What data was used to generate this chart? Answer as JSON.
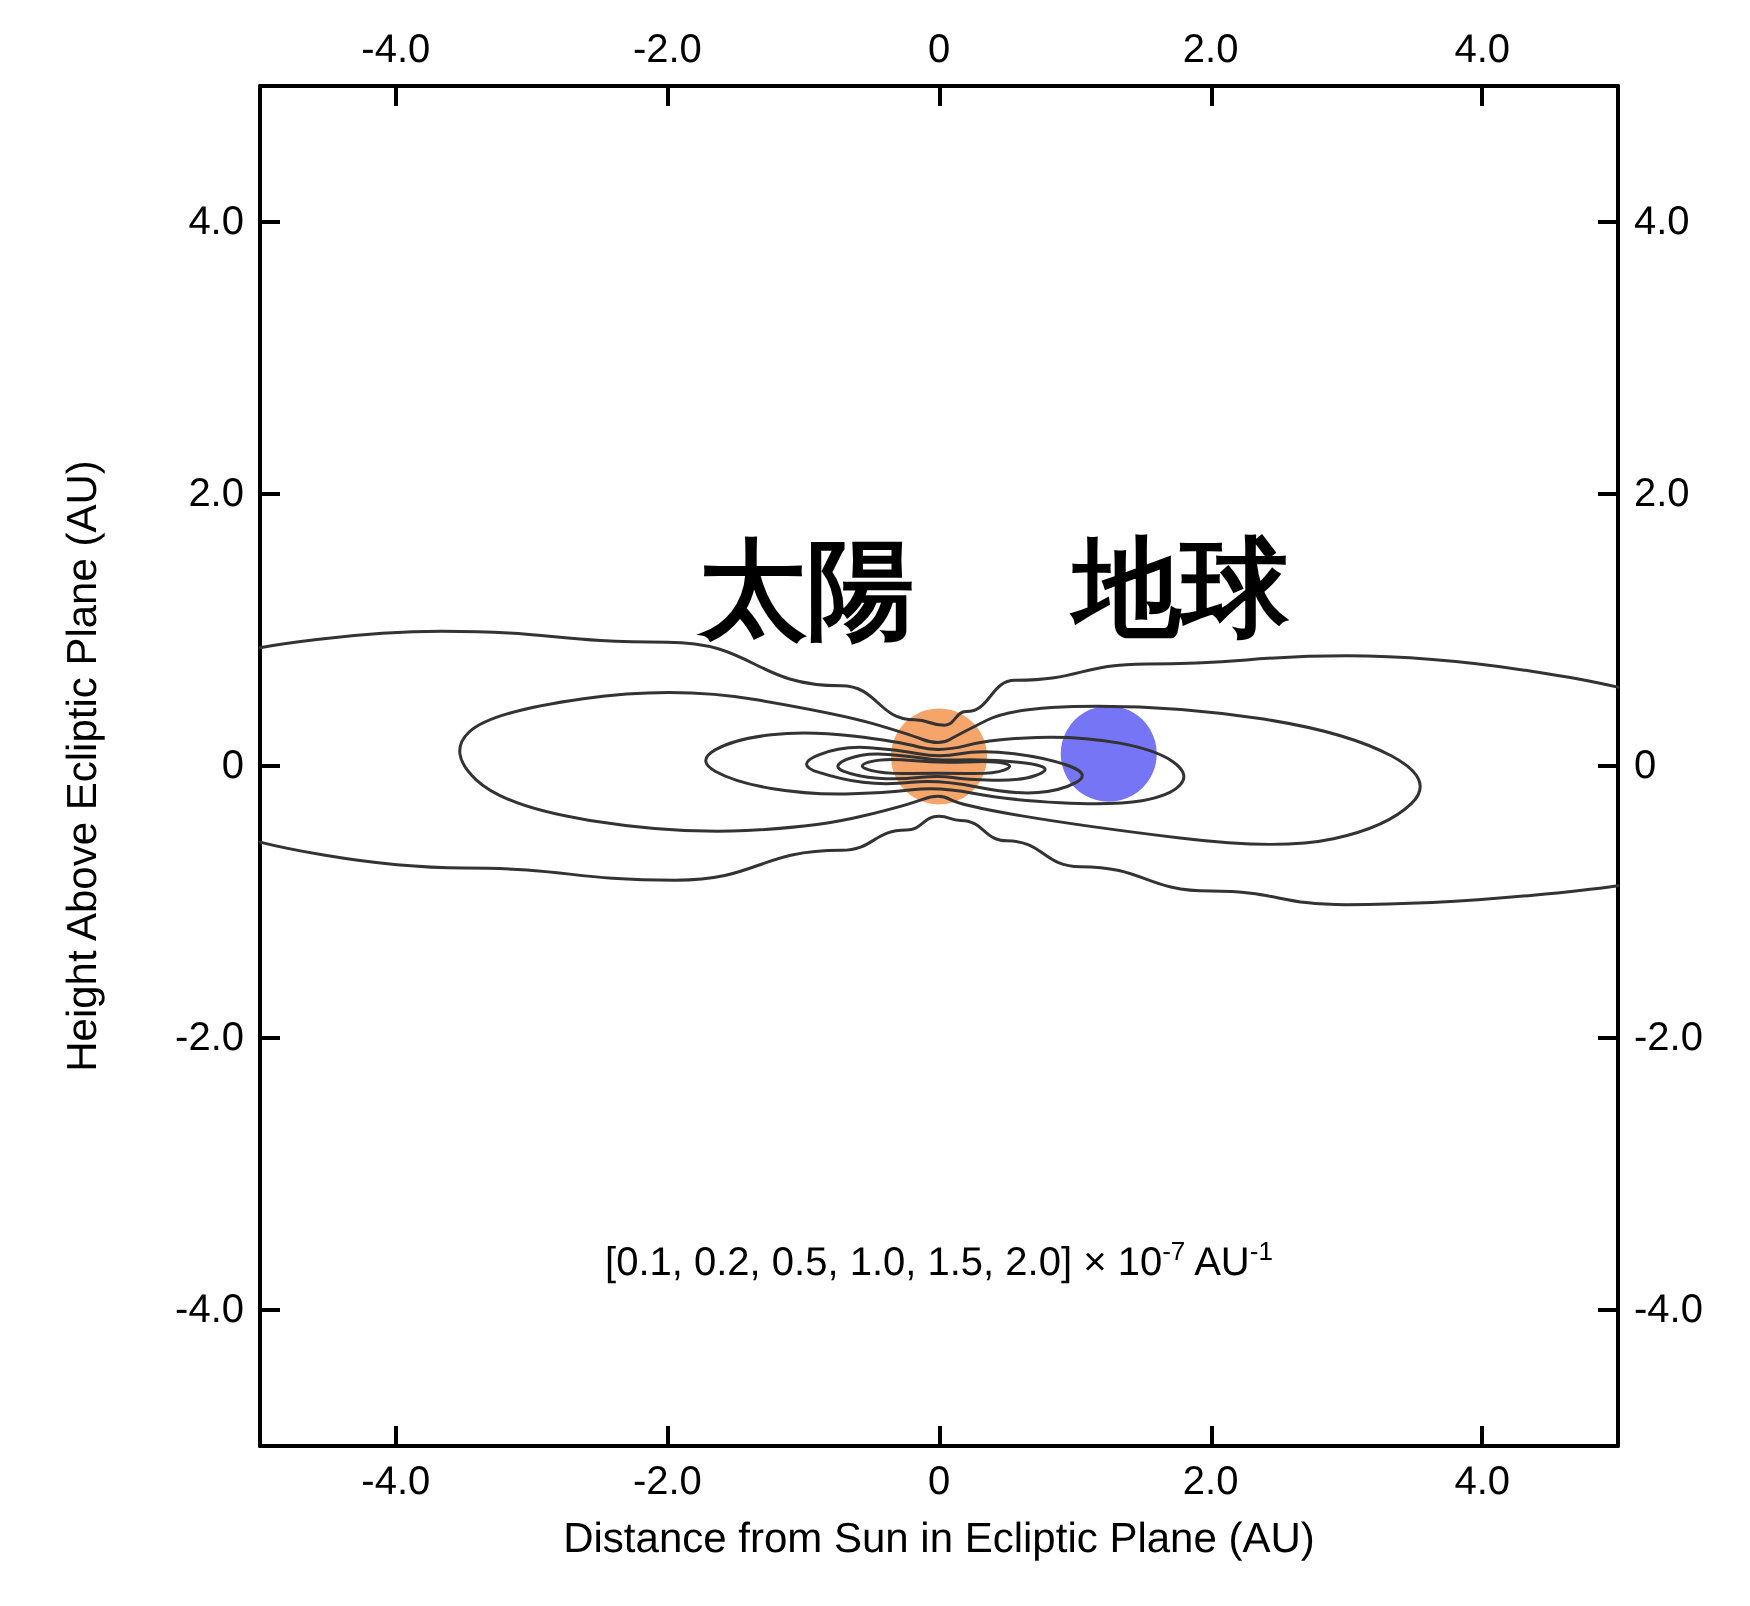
{
  "chart_data": {
    "type": "line",
    "xlabel": "Distance from Sun in Ecliptic Plane (AU)",
    "ylabel": "Height Above Ecliptic Plane (AU)",
    "xlim": [
      -5,
      5
    ],
    "xticks": [
      {
        "value": -4,
        "label": "-4.0"
      },
      {
        "value": -2,
        "label": "-2.0"
      },
      0,
      {
        "value": 2,
        "label": "2.0"
      },
      {
        "value": 4,
        "label": "4.0"
      }
    ],
    "x2lim": [
      -5,
      5
    ],
    "x2ticks": [
      {
        "value": -4,
        "label": "-4.0"
      },
      {
        "value": -2,
        "label": "-2.0"
      },
      0,
      {
        "value": 2,
        "label": "2.0"
      },
      {
        "value": 4,
        "label": "4.0"
      }
    ],
    "ylim": [
      -5,
      5
    ],
    "yticks": [
      {
        "value": -4,
        "label": "-4.0"
      },
      {
        "value": -2,
        "label": "-2.0"
      },
      0,
      {
        "value": 2,
        "label": "2.0"
      },
      {
        "value": 4,
        "label": "4.0"
      }
    ],
    "y2lim": [
      -5,
      5
    ],
    "y2ticks": [
      {
        "value": -4,
        "label": "-4.0"
      },
      {
        "value": -2,
        "label": "-2.0"
      },
      0,
      {
        "value": 2,
        "label": "2.0"
      },
      {
        "value": 4,
        "label": "4.0"
      }
    ],
    "marker": "none",
    "line_style": "solid",
    "series": [
      {
        "type": "scatter",
        "name": "太陽",
        "color": "#f5a46a",
        "marker": "circle",
        "x": [
          0
        ],
        "values": [
          0.07
        ]
      },
      {
        "type": "scatter",
        "name": "地球",
        "color": "#7575f6",
        "marker": "circle",
        "x": [
          1.25
        ],
        "values": [
          0.09
        ]
      },
      {
        "color": "#333333",
        "x": [
          -5,
          -3.66,
          -2.0,
          -0.72,
          -0.18,
          0.04,
          0.2,
          0.56,
          1.53,
          3.0,
          5
        ],
        "values": [
          0.87,
          0.99,
          0.91,
          0.59,
          0.34,
          0.3,
          0.4,
          0.63,
          0.75,
          0.81,
          0.58
        ]
      },
      {
        "color": "#333333",
        "x": [
          -5,
          -3.5,
          -1.94,
          -0.72,
          -0.24,
          0,
          0.16,
          0.5,
          1.04,
          2.0,
          3.0,
          5
        ],
        "values": [
          -0.56,
          -0.75,
          -0.84,
          -0.62,
          -0.47,
          -0.37,
          -0.4,
          -0.55,
          -0.74,
          -0.92,
          -1.02,
          -0.88
        ]
      }
    ],
    "annotations": [
      "[0.1, 0.2, 0.5, 1.0, 1.5, 2.0] × 10$^{-7}$ AU$^{-1}$"
    ]
  }
}
